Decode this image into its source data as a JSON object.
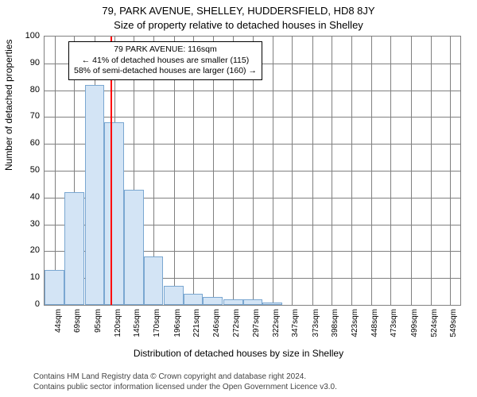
{
  "titles": {
    "line1": "79, PARK AVENUE, SHELLEY, HUDDERSFIELD, HD8 8JY",
    "line2": "Size of property relative to detached houses in Shelley"
  },
  "axes": {
    "ylabel": "Number of detached properties",
    "xlabel": "Distribution of detached houses by size in Shelley"
  },
  "chart": {
    "type": "histogram",
    "background_color": "#ffffff",
    "grid_color": "#808080",
    "plot_border_color": "#808080",
    "bar_color": "#d3e4f5",
    "bar_border_color": "#7aa7d1",
    "marker_color": "#ff0000",
    "ylim": [
      0,
      100
    ],
    "ytick_step": 10,
    "x_categories": [
      "44sqm",
      "69sqm",
      "95sqm",
      "120sqm",
      "145sqm",
      "170sqm",
      "196sqm",
      "221sqm",
      "246sqm",
      "272sqm",
      "297sqm",
      "322sqm",
      "347sqm",
      "373sqm",
      "398sqm",
      "423sqm",
      "448sqm",
      "473sqm",
      "499sqm",
      "524sqm",
      "549sqm"
    ],
    "x_values_sqm": [
      44,
      69,
      95,
      120,
      145,
      170,
      196,
      221,
      246,
      272,
      297,
      322,
      347,
      373,
      398,
      423,
      448,
      473,
      499,
      524,
      549
    ],
    "bars": [
      {
        "x_sqm": 44,
        "y": 13
      },
      {
        "x_sqm": 69,
        "y": 42
      },
      {
        "x_sqm": 95,
        "y": 82
      },
      {
        "x_sqm": 120,
        "y": 68
      },
      {
        "x_sqm": 145,
        "y": 43
      },
      {
        "x_sqm": 170,
        "y": 18
      },
      {
        "x_sqm": 196,
        "y": 7
      },
      {
        "x_sqm": 221,
        "y": 4
      },
      {
        "x_sqm": 246,
        "y": 3
      },
      {
        "x_sqm": 272,
        "y": 2
      },
      {
        "x_sqm": 297,
        "y": 2
      },
      {
        "x_sqm": 322,
        "y": 1
      }
    ],
    "marker_x_sqm": 116,
    "xlim_sqm": [
      31,
      562
    ],
    "bar_width_sqm": 25,
    "yticks": [
      0,
      10,
      20,
      30,
      40,
      50,
      60,
      70,
      80,
      90,
      100
    ],
    "label_fontsize": 12,
    "tick_fontsize": 11
  },
  "annotation": {
    "line1": "79 PARK AVENUE: 116sqm",
    "line2": "← 41% of detached houses are smaller (115)",
    "line3": "58% of semi-detached houses are larger (160) →"
  },
  "footer": {
    "line1": "Contains HM Land Registry data © Crown copyright and database right 2024.",
    "line2": "Contains public sector information licensed under the Open Government Licence v3.0."
  }
}
